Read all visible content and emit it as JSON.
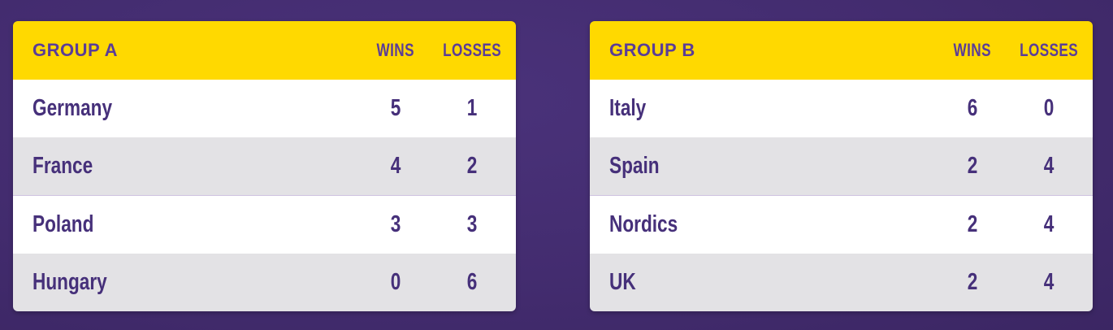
{
  "tables": [
    {
      "title": "GROUP A",
      "columns": [
        "WINS",
        "LOSSES"
      ],
      "rows": [
        {
          "name": "Germany",
          "wins": "5",
          "losses": "1"
        },
        {
          "name": "France",
          "wins": "4",
          "losses": "2"
        },
        {
          "name": "Poland",
          "wins": "3",
          "losses": "3"
        },
        {
          "name": "Hungary",
          "wins": "0",
          "losses": "6"
        }
      ]
    },
    {
      "title": "GROUP B",
      "columns": [
        "WINS",
        "LOSSES"
      ],
      "rows": [
        {
          "name": "Italy",
          "wins": "6",
          "losses": "0"
        },
        {
          "name": "Spain",
          "wins": "2",
          "losses": "4"
        },
        {
          "name": "Nordics",
          "wins": "2",
          "losses": "4"
        },
        {
          "name": "UK",
          "wins": "2",
          "losses": "4"
        }
      ]
    }
  ],
  "colors": {
    "background": "#45306f",
    "header": "#ffd900",
    "text": "#46307a",
    "row_alt": "#e3e2e5"
  }
}
